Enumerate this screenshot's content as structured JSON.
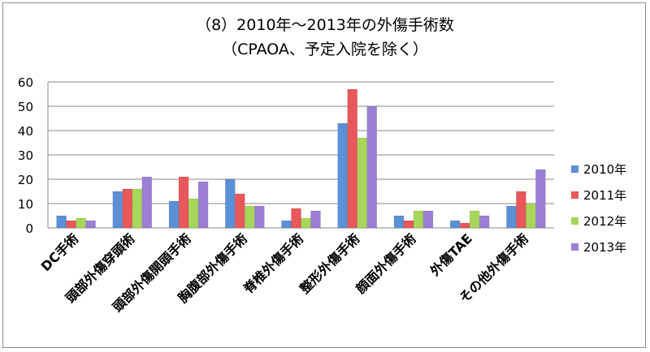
{
  "chart_data": {
    "type": "bar",
    "title": "（8）2010年～2013年の外傷手術数",
    "subtitle": "（CPAOA、予定入院を除く）",
    "categories": [
      "DC手術",
      "頭部外傷穿頭術",
      "頭部外傷開頭手術",
      "胸腹部外傷手術",
      "脊椎外傷手術",
      "整形外傷手術",
      "顔面外傷手術",
      "外傷TAE",
      "その他外傷手術"
    ],
    "series": [
      {
        "name": "2010年",
        "color": "#5b8fd6",
        "values": [
          5,
          15,
          11,
          20,
          3,
          43,
          5,
          3,
          9
        ]
      },
      {
        "name": "2011年",
        "color": "#e8575a",
        "values": [
          3,
          16,
          21,
          14,
          8,
          57,
          3,
          2,
          15
        ]
      },
      {
        "name": "2012年",
        "color": "#a6d65a",
        "values": [
          4,
          16,
          12,
          9,
          4,
          37,
          7,
          7,
          10
        ]
      },
      {
        "name": "2013年",
        "color": "#9b7fd4",
        "values": [
          3,
          21,
          19,
          9,
          7,
          50,
          7,
          5,
          24
        ]
      }
    ],
    "yticks": [
      "0",
      "10",
      "20",
      "30",
      "40",
      "50",
      "60"
    ],
    "ylim": [
      0,
      60
    ],
    "grid": true,
    "legend": "right"
  }
}
